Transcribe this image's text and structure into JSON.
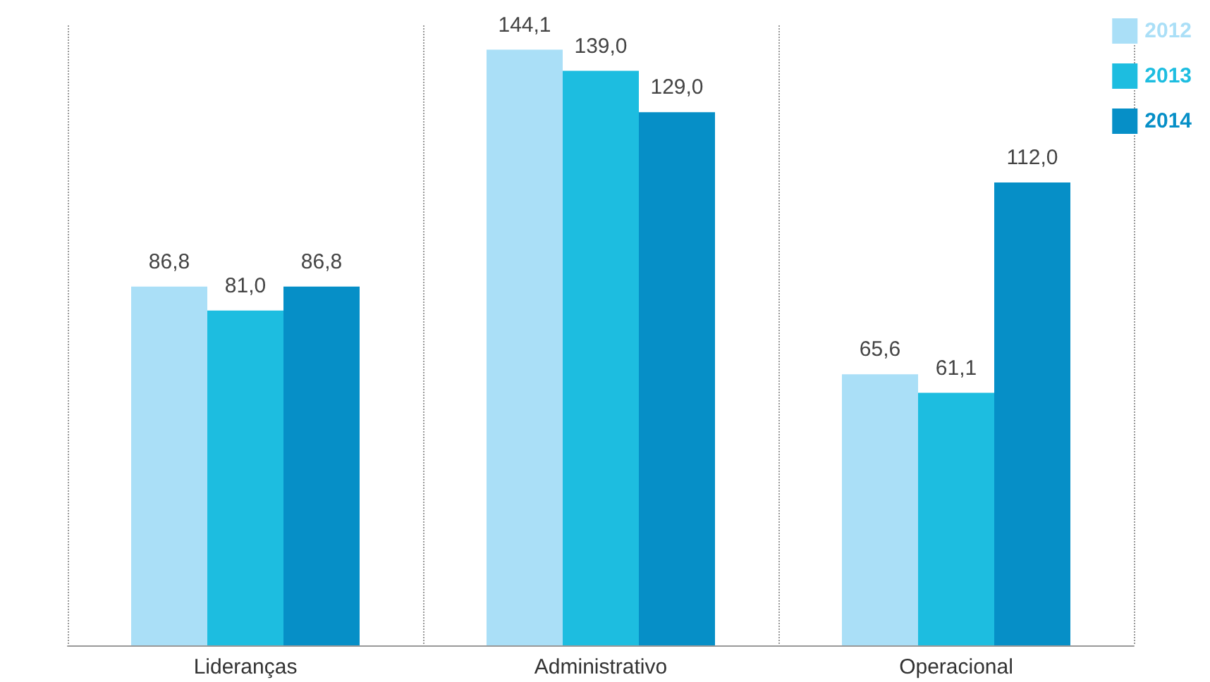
{
  "chart_data": {
    "type": "bar",
    "categories": [
      "Lideranças",
      "Administrativo",
      "Operacional"
    ],
    "series": [
      {
        "name": "2012",
        "color": "#aadff7",
        "values": [
          86.8,
          144.1,
          65.6
        ],
        "value_labels": [
          "86,8",
          "144,1",
          "65,6"
        ]
      },
      {
        "name": "2013",
        "color": "#1dbde0",
        "values": [
          81.0,
          139.0,
          61.1
        ],
        "value_labels": [
          "81,0",
          "139,0",
          "61,1"
        ]
      },
      {
        "name": "2014",
        "color": "#068fc7",
        "values": [
          86.8,
          129.0,
          112.0
        ],
        "value_labels": [
          "86,8",
          "129,0",
          "112,0"
        ]
      }
    ],
    "grid": "x",
    "legend": "top right",
    "tick_labels": "x"
  }
}
